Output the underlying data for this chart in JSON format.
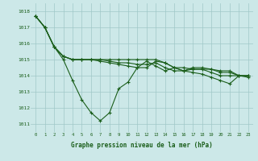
{
  "x": [
    0,
    1,
    2,
    3,
    4,
    5,
    6,
    7,
    8,
    9,
    10,
    11,
    12,
    13,
    14,
    15,
    16,
    17,
    18,
    19,
    20,
    21,
    22,
    23
  ],
  "line1": [
    1017.7,
    1017.0,
    1015.8,
    1015.0,
    1013.7,
    1012.5,
    1011.7,
    1011.2,
    1011.7,
    1013.2,
    1013.6,
    1014.5,
    1014.9,
    1014.6,
    1014.3,
    1014.5,
    1014.5,
    1014.4,
    1014.4,
    1014.2,
    1014.0,
    1014.0,
    1014.0,
    1014.0
  ],
  "line2": [
    1017.7,
    1017.0,
    1015.8,
    1015.2,
    1015.0,
    1015.0,
    1015.0,
    1014.9,
    1014.8,
    1014.7,
    1014.6,
    1014.5,
    1014.5,
    1014.9,
    1014.8,
    1014.5,
    1014.3,
    1014.5,
    1014.5,
    1014.4,
    1014.3,
    1014.3,
    1014.0,
    1014.0
  ],
  "line3": [
    1017.7,
    1017.0,
    1015.8,
    1015.2,
    1015.0,
    1015.0,
    1015.0,
    1015.0,
    1014.9,
    1014.8,
    1014.8,
    1014.7,
    1014.7,
    1014.8,
    1014.5,
    1014.3,
    1014.3,
    1014.4,
    1014.4,
    1014.4,
    1014.2,
    1014.2,
    1014.0,
    1013.9
  ],
  "line4": [
    1017.7,
    1017.0,
    1015.8,
    1015.2,
    1015.0,
    1015.0,
    1015.0,
    1015.0,
    1015.0,
    1015.0,
    1015.0,
    1015.0,
    1015.0,
    1015.0,
    1014.8,
    1014.5,
    1014.3,
    1014.2,
    1014.1,
    1013.9,
    1013.7,
    1013.5,
    1014.0,
    1014.0
  ],
  "ylim": [
    1010.5,
    1018.5
  ],
  "yticks": [
    1011,
    1012,
    1013,
    1014,
    1015,
    1016,
    1017,
    1018
  ],
  "xticks": [
    0,
    1,
    2,
    3,
    4,
    5,
    6,
    7,
    8,
    9,
    10,
    11,
    12,
    13,
    14,
    15,
    16,
    17,
    18,
    19,
    20,
    21,
    22,
    23
  ],
  "xlabel": "Graphe pression niveau de la mer (hPa)",
  "line_color": "#1a5e1a",
  "bg_color": "#cce8e8",
  "grid_color": "#a0c8c8",
  "marker": "+",
  "marker_size": 3,
  "linewidth": 0.8
}
